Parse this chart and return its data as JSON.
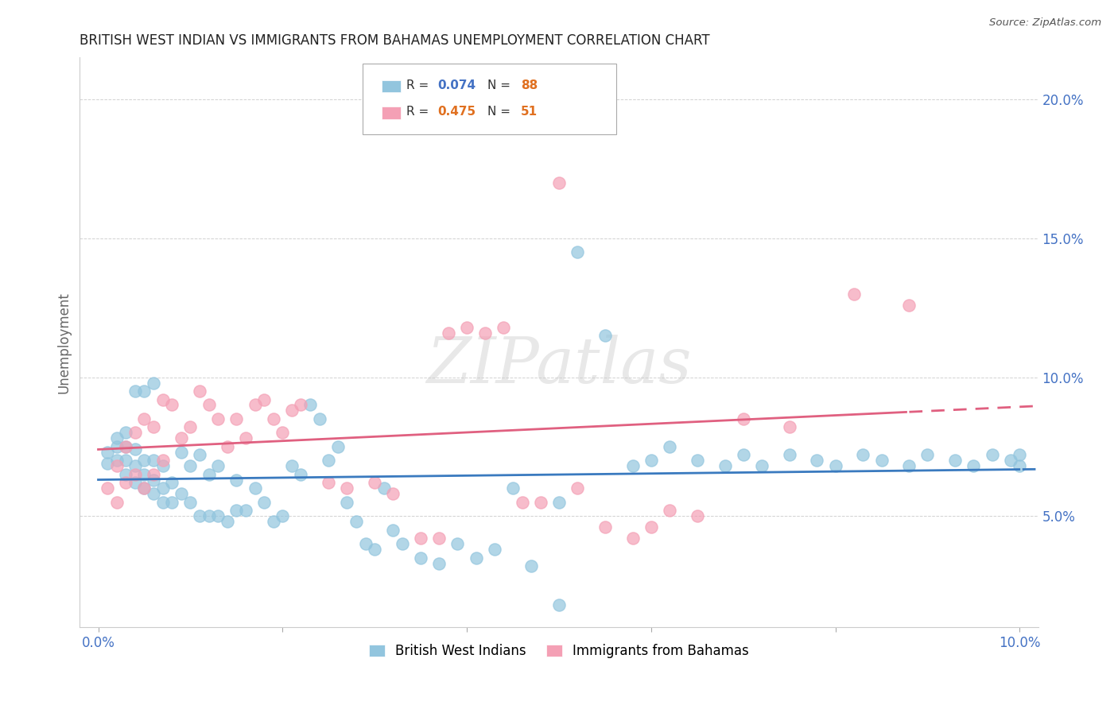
{
  "title": "BRITISH WEST INDIAN VS IMMIGRANTS FROM BAHAMAS UNEMPLOYMENT CORRELATION CHART",
  "source": "Source: ZipAtlas.com",
  "ylabel": "Unemployment",
  "y_tick_vals": [
    0.05,
    0.1,
    0.15,
    0.2
  ],
  "y_tick_labels": [
    "5.0%",
    "10.0%",
    "15.0%",
    "20.0%"
  ],
  "x_tick_vals": [
    0.0,
    0.02,
    0.04,
    0.06,
    0.08,
    0.1
  ],
  "x_tick_labels": [
    "0.0%",
    "",
    "",
    "",
    "",
    "10.0%"
  ],
  "x_lim": [
    -0.002,
    0.102
  ],
  "y_lim": [
    0.01,
    0.215
  ],
  "color_blue": "#92c5de",
  "color_pink": "#f4a0b5",
  "color_blue_line": "#3a7abf",
  "color_pink_line": "#e06080",
  "watermark_text": "ZIPatlas",
  "r_blue": "0.074",
  "n_blue": "88",
  "r_pink": "0.475",
  "n_pink": "51",
  "blue_scatter_x": [
    0.001,
    0.001,
    0.002,
    0.002,
    0.002,
    0.003,
    0.003,
    0.003,
    0.003,
    0.004,
    0.004,
    0.004,
    0.004,
    0.005,
    0.005,
    0.005,
    0.005,
    0.006,
    0.006,
    0.006,
    0.006,
    0.007,
    0.007,
    0.007,
    0.008,
    0.008,
    0.009,
    0.009,
    0.01,
    0.01,
    0.011,
    0.011,
    0.012,
    0.012,
    0.013,
    0.013,
    0.014,
    0.015,
    0.015,
    0.016,
    0.017,
    0.018,
    0.019,
    0.02,
    0.021,
    0.022,
    0.023,
    0.024,
    0.025,
    0.026,
    0.027,
    0.028,
    0.029,
    0.03,
    0.031,
    0.032,
    0.033,
    0.035,
    0.037,
    0.039,
    0.041,
    0.043,
    0.045,
    0.047,
    0.05,
    0.05,
    0.052,
    0.055,
    0.058,
    0.06,
    0.062,
    0.065,
    0.068,
    0.07,
    0.072,
    0.075,
    0.078,
    0.08,
    0.083,
    0.085,
    0.088,
    0.09,
    0.093,
    0.095,
    0.097,
    0.099,
    0.1,
    0.1
  ],
  "blue_scatter_y": [
    0.073,
    0.069,
    0.07,
    0.075,
    0.078,
    0.065,
    0.07,
    0.075,
    0.08,
    0.062,
    0.068,
    0.074,
    0.095,
    0.06,
    0.065,
    0.07,
    0.095,
    0.058,
    0.063,
    0.07,
    0.098,
    0.055,
    0.06,
    0.068,
    0.055,
    0.062,
    0.058,
    0.073,
    0.055,
    0.068,
    0.05,
    0.072,
    0.05,
    0.065,
    0.05,
    0.068,
    0.048,
    0.052,
    0.063,
    0.052,
    0.06,
    0.055,
    0.048,
    0.05,
    0.068,
    0.065,
    0.09,
    0.085,
    0.07,
    0.075,
    0.055,
    0.048,
    0.04,
    0.038,
    0.06,
    0.045,
    0.04,
    0.035,
    0.033,
    0.04,
    0.035,
    0.038,
    0.06,
    0.032,
    0.018,
    0.055,
    0.145,
    0.115,
    0.068,
    0.07,
    0.075,
    0.07,
    0.068,
    0.072,
    0.068,
    0.072,
    0.07,
    0.068,
    0.072,
    0.07,
    0.068,
    0.072,
    0.07,
    0.068,
    0.072,
    0.07,
    0.068,
    0.072
  ],
  "pink_scatter_x": [
    0.001,
    0.002,
    0.002,
    0.003,
    0.003,
    0.004,
    0.004,
    0.005,
    0.005,
    0.006,
    0.006,
    0.007,
    0.007,
    0.008,
    0.009,
    0.01,
    0.011,
    0.012,
    0.013,
    0.014,
    0.015,
    0.016,
    0.017,
    0.018,
    0.019,
    0.02,
    0.021,
    0.022,
    0.025,
    0.027,
    0.03,
    0.032,
    0.035,
    0.037,
    0.038,
    0.04,
    0.042,
    0.044,
    0.046,
    0.048,
    0.05,
    0.052,
    0.055,
    0.058,
    0.06,
    0.062,
    0.065,
    0.07,
    0.075,
    0.082,
    0.088
  ],
  "pink_scatter_y": [
    0.06,
    0.055,
    0.068,
    0.062,
    0.075,
    0.065,
    0.08,
    0.06,
    0.085,
    0.065,
    0.082,
    0.07,
    0.092,
    0.09,
    0.078,
    0.082,
    0.095,
    0.09,
    0.085,
    0.075,
    0.085,
    0.078,
    0.09,
    0.092,
    0.085,
    0.08,
    0.088,
    0.09,
    0.062,
    0.06,
    0.062,
    0.058,
    0.042,
    0.042,
    0.116,
    0.118,
    0.116,
    0.118,
    0.055,
    0.055,
    0.17,
    0.06,
    0.046,
    0.042,
    0.046,
    0.052,
    0.05,
    0.085,
    0.082,
    0.13,
    0.126
  ]
}
